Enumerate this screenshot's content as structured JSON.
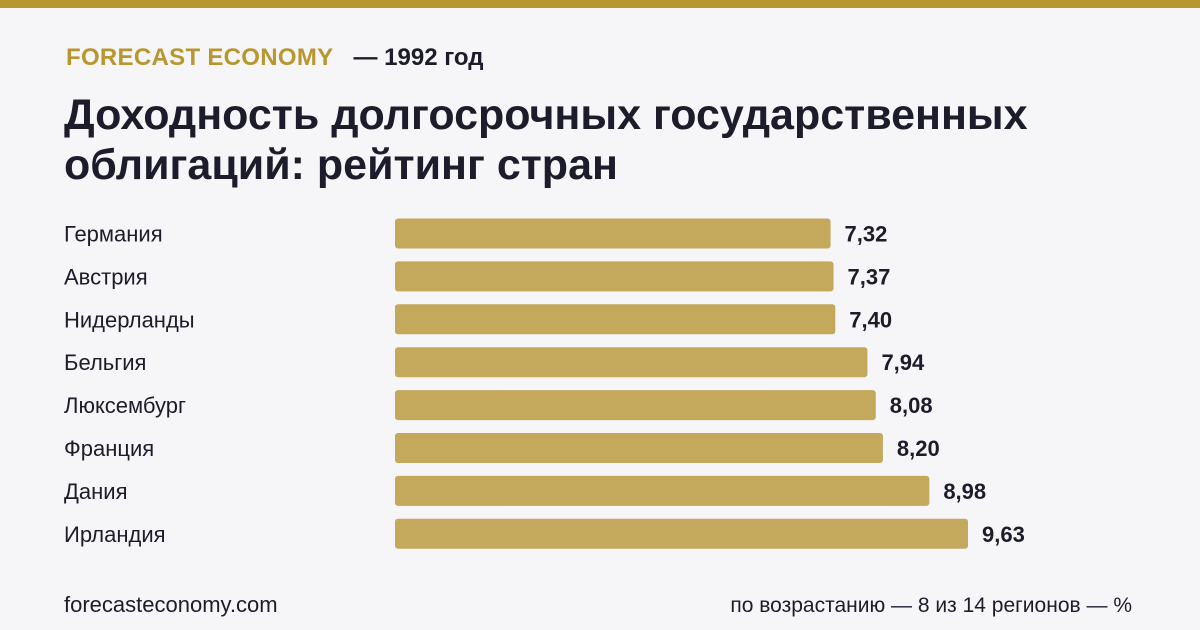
{
  "header": {
    "brand": "FORECAST ECONOMY",
    "year": "— 1992 год"
  },
  "colors": {
    "accent": "#b9972f",
    "bar": "#c4a85b",
    "text": "#1c1c2b",
    "background": "#f6f6f9"
  },
  "chart_data": {
    "type": "bar",
    "orientation": "horizontal",
    "title": "Доходность долгосрочных государственных облигаций: рейтинг стран",
    "categories": [
      "Германия",
      "Австрия",
      "Нидерланды",
      "Бельгия",
      "Люксембург",
      "Франция",
      "Дания",
      "Ирландия"
    ],
    "values": [
      7.32,
      7.37,
      7.4,
      7.94,
      8.08,
      8.2,
      8.98,
      9.63
    ],
    "value_labels": [
      "7,32",
      "7,37",
      "7,40",
      "7,94",
      "8,08",
      "8,20",
      "8,98",
      "9,63"
    ],
    "xlabel": "",
    "ylabel": "",
    "grid": false,
    "legend": "none"
  },
  "footer": {
    "site": "forecasteconomy.com",
    "note": "по возрастанию — 8 из 14 регионов — %"
  }
}
